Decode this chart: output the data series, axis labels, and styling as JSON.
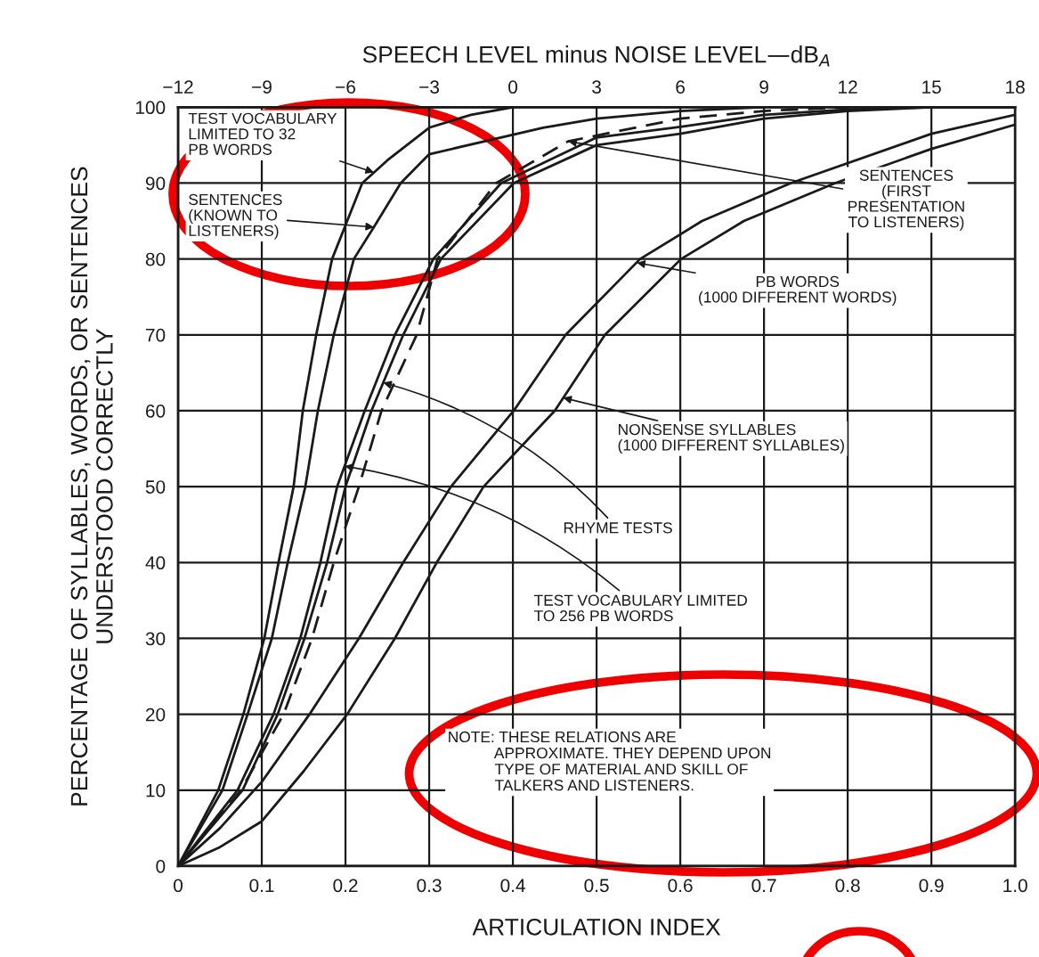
{
  "chart_data": {
    "type": "line",
    "xlabel": "ARTICULATION INDEX",
    "ylabel": "PERCENTAGE OF SYLLABLES, WORDS, OR SENTENCES\nUNDERSTOOD CORRECTLY",
    "x2label": "SPEECH LEVEL minus NOISE LEVEL—dB$_{A}$",
    "xlim": [
      0,
      1
    ],
    "xticks": [
      0,
      0.1,
      0.2,
      0.3,
      0.4,
      0.5,
      0.6,
      0.7,
      0.8,
      0.9,
      {
        "value": 1,
        "label": "1.0"
      }
    ],
    "x2lim": [
      -12,
      18
    ],
    "x2ticks": [
      {
        "value": -12,
        "label": "−12"
      },
      {
        "value": -9,
        "label": "−9"
      },
      {
        "value": -6,
        "label": "−6"
      },
      {
        "value": -3,
        "label": "−3"
      },
      0,
      3,
      6,
      9,
      12,
      15,
      18
    ],
    "ylim": [
      0,
      100
    ],
    "yticks": [
      0,
      10,
      20,
      30,
      40,
      50,
      60,
      70,
      80,
      90,
      100
    ],
    "grid": true,
    "legend": false,
    "marker": "none",
    "series": [
      {
        "color": "#1a1a1a",
        "line_style": "solid",
        "x": [
          0,
          0.048,
          0.078,
          0.103,
          0.12,
          0.138,
          0.149,
          0.165,
          0.184,
          0.22,
          0.25,
          0.3,
          0.35,
          0.4
        ],
        "values": [
          0,
          10,
          20,
          30,
          40,
          50,
          60,
          70,
          80,
          90,
          93,
          97.3,
          99,
          100
        ]
      },
      {
        "color": "#1a1a1a",
        "line_style": "solid",
        "x": [
          0,
          0.053,
          0.083,
          0.112,
          0.131,
          0.152,
          0.167,
          0.186,
          0.21,
          0.234,
          0.266,
          0.3,
          0.436,
          0.5,
          0.6,
          0.7
        ],
        "values": [
          0,
          10,
          20,
          30,
          40,
          50,
          60,
          70,
          80,
          84.2,
          90,
          93.8,
          97.3,
          98.5,
          99.5,
          100
        ]
      },
      {
        "color": "#1a1a1a",
        "line_style": "solid",
        "x": [
          0,
          0.071,
          0.114,
          0.146,
          0.17,
          0.19,
          0.223,
          0.259,
          0.305,
          0.386,
          0.5,
          0.6,
          0.7,
          0.8,
          0.9
        ],
        "values": [
          0,
          10,
          20,
          30,
          40,
          50,
          60,
          70,
          80,
          90,
          96,
          97.4,
          99,
          99.7,
          100
        ]
      },
      {
        "color": "#1a1a1a",
        "line_style": "solid",
        "x": [
          0,
          0.077,
          0.119,
          0.151,
          0.178,
          0.2,
          0.231,
          0.269,
          0.314,
          0.401,
          0.5,
          0.6,
          0.7,
          0.8,
          0.9,
          1
        ],
        "values": [
          0,
          10,
          20,
          30,
          40,
          50,
          60,
          70,
          80,
          90,
          95,
          96.5,
          98.5,
          99.5,
          100,
          100
        ]
      },
      {
        "color": "#1a1a1a",
        "line_style": "dashed",
        "x": [
          0,
          0.075,
          0.126,
          0.16,
          0.186,
          0.216,
          0.243,
          0.285,
          0.31,
          0.38,
          0.466,
          0.6,
          0.7,
          0.8
        ],
        "values": [
          0,
          10,
          20,
          30,
          40,
          50,
          60,
          70,
          80,
          90,
          95.5,
          98.5,
          99.5,
          100
        ]
      },
      {
        "color": "#1a1a1a",
        "line_style": "solid",
        "x": [
          0,
          0.05,
          0.1,
          0.157,
          0.216,
          0.269,
          0.326,
          0.401,
          0.463,
          0.552,
          0.626,
          0.732,
          0.9,
          1
        ],
        "values": [
          0,
          5,
          11.1,
          20,
          30,
          40,
          50,
          60,
          70,
          80,
          85,
          90,
          96.5,
          99
        ]
      },
      {
        "color": "#1a1a1a",
        "line_style": "solid",
        "x": [
          0,
          0.05,
          0.1,
          0.15,
          0.202,
          0.259,
          0.309,
          0.365,
          0.45,
          0.51,
          0.601,
          0.676,
          0.785,
          0.9,
          1
        ],
        "values": [
          0,
          2.5,
          5.9,
          12.5,
          20,
          30,
          40,
          50,
          60,
          70,
          80,
          85,
          90,
          94.5,
          97.7
        ]
      }
    ],
    "annotations": [
      {
        "text": "TEST VOCABULARY\nLIMITED TO 32\nPB WORDS",
        "x": 0.234,
        "y": 91.4
      },
      {
        "text": "SENTENCES\n(KNOWN TO\nLISTENERS)",
        "x": 0.234,
        "y": 84.2
      },
      {
        "text": "SENTENCES\n(FIRST\nPRESENTATION\nTO LISTENERS)",
        "x": 0.466,
        "y": 95.5
      },
      {
        "text": "PB WORDS\n(1000 DIFFERENT WORDS)",
        "x": 0.548,
        "y": 79.5
      },
      {
        "text": "NONSENSE SYLLABLES\n(1000 DIFFERENT SYLLABLES)",
        "x": 0.46,
        "y": 61.7
      },
      {
        "text": "RHYME TESTS",
        "x": 0.245,
        "y": 63.7
      },
      {
        "text": "TEST VOCABULARY LIMITED\nTO 256 PB WORDS",
        "x": 0.199,
        "y": 52.7
      },
      "NOTE: THESE RELATIONS ARE\n           APPROXIMATE. THEY DEPEND UPON\n           TYPE OF MATERIAL AND SKILL OF\n           TALKERS AND LISTENERS."
    ]
  }
}
